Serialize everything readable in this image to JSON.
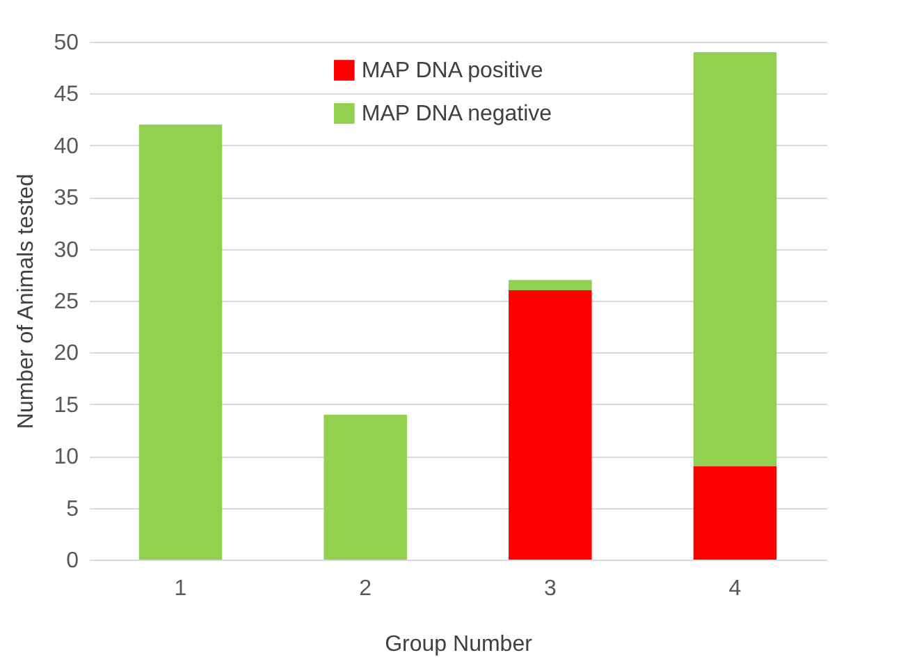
{
  "chart_data": {
    "type": "bar",
    "stacked": true,
    "xlabel": "Group Number",
    "ylabel": "Number of Animals tested",
    "categories": [
      "1",
      "2",
      "3",
      "4"
    ],
    "series": [
      {
        "name": "MAP DNA positive",
        "color": "#ff0000",
        "values": [
          0,
          0,
          26,
          9
        ]
      },
      {
        "name": "MAP DNA negative",
        "color": "#92d050",
        "values": [
          42,
          14,
          1,
          40
        ]
      }
    ],
    "ylim": [
      0,
      50
    ],
    "yticks": [
      0,
      5,
      10,
      15,
      20,
      25,
      30,
      35,
      40,
      45,
      50
    ],
    "grid": "y",
    "legend": "top"
  }
}
